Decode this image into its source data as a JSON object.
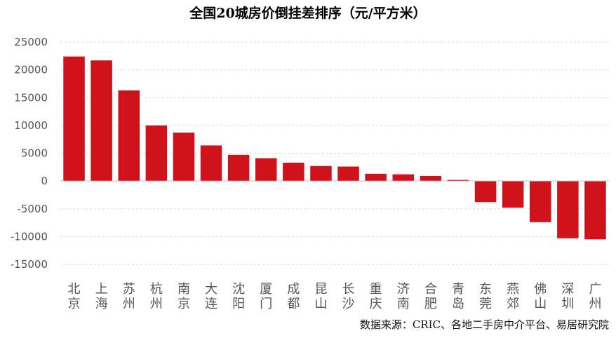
{
  "chart_data": {
    "type": "bar",
    "title": "全国20城房价倒挂差排序（元/平方米）",
    "source": "数据来源：CRIC、各地二手房中介平台、易居研究院",
    "categories": [
      "北京",
      "上海",
      "苏州",
      "杭州",
      "南京",
      "大连",
      "沈阳",
      "厦门",
      "成都",
      "昆山",
      "长沙",
      "重庆",
      "济南",
      "合肥",
      "青岛",
      "东莞",
      "燕郊",
      "佛山",
      "深圳",
      "广州"
    ],
    "values": [
      22400,
      21700,
      16300,
      10000,
      8700,
      6400,
      4700,
      4100,
      3300,
      2700,
      2600,
      1300,
      1200,
      900,
      200,
      -3800,
      -4800,
      -7400,
      -10300,
      -10500
    ],
    "ylim": [
      -15000,
      25000
    ],
    "yticks": [
      25000,
      20000,
      15000,
      10000,
      5000,
      0,
      -5000,
      -10000,
      -15000
    ],
    "grid": true,
    "legend": "none",
    "bar_color": "#d0121b"
  }
}
